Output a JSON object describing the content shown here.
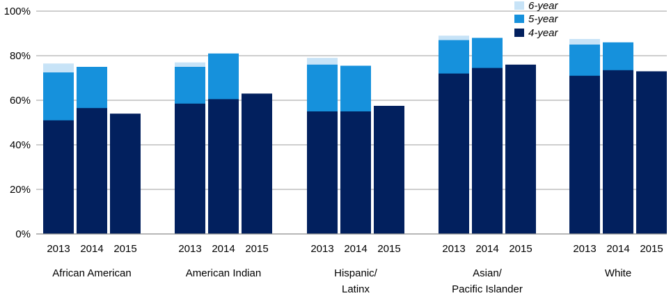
{
  "chart_data": {
    "type": "bar",
    "stacked": true,
    "y_axis": {
      "min": 0,
      "max": 100,
      "ticks": [
        0,
        20,
        40,
        60,
        80,
        100
      ],
      "tick_labels": [
        "0%",
        "20%",
        "40%",
        "60%",
        "80%",
        "100%"
      ]
    },
    "grid": true,
    "legend": {
      "placement": "top-right",
      "entries": [
        {
          "label": "6-year",
          "color": "#c7e3f7"
        },
        {
          "label": "5-year",
          "color": "#1691dc"
        },
        {
          "label": "4-year",
          "color": "#02205e"
        }
      ]
    },
    "groups": [
      {
        "label_lines": [
          "African American"
        ],
        "bars": [
          {
            "year": "2013",
            "four_year": 51,
            "five_year": 72.5,
            "six_year": 76.5
          },
          {
            "year": "2014",
            "four_year": 56.5,
            "five_year": 75,
            "six_year": null
          },
          {
            "year": "2015",
            "four_year": 54,
            "five_year": null,
            "six_year": null
          }
        ]
      },
      {
        "label_lines": [
          "American Indian"
        ],
        "bars": [
          {
            "year": "2013",
            "four_year": 58.5,
            "five_year": 75,
            "six_year": 77
          },
          {
            "year": "2014",
            "four_year": 60.5,
            "five_year": 81,
            "six_year": null
          },
          {
            "year": "2015",
            "four_year": 63,
            "five_year": null,
            "six_year": null
          }
        ]
      },
      {
        "label_lines": [
          "Hispanic/",
          "Latinx"
        ],
        "bars": [
          {
            "year": "2013",
            "four_year": 55,
            "five_year": 76,
            "six_year": 79
          },
          {
            "year": "2014",
            "four_year": 55,
            "five_year": 75.5,
            "six_year": null
          },
          {
            "year": "2015",
            "four_year": 57.5,
            "five_year": null,
            "six_year": null
          }
        ]
      },
      {
        "label_lines": [
          "Asian/",
          "Pacific Islander"
        ],
        "bars": [
          {
            "year": "2013",
            "four_year": 72,
            "five_year": 87,
            "six_year": 89
          },
          {
            "year": "2014",
            "four_year": 74.5,
            "five_year": 88,
            "six_year": null
          },
          {
            "year": "2015",
            "four_year": 76,
            "five_year": null,
            "six_year": null
          }
        ]
      },
      {
        "label_lines": [
          "White"
        ],
        "bars": [
          {
            "year": "2013",
            "four_year": 71,
            "five_year": 85,
            "six_year": 87.5
          },
          {
            "year": "2014",
            "four_year": 73.5,
            "five_year": 86,
            "six_year": null
          },
          {
            "year": "2015",
            "four_year": 73,
            "five_year": null,
            "six_year": null
          }
        ]
      }
    ]
  }
}
